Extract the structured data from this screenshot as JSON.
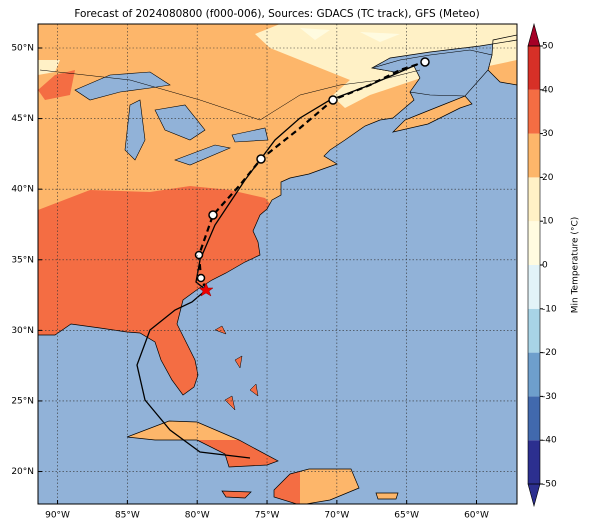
{
  "title": "Forecast of 2024080800 (f000-006), Sources: GDACS (TC track), GFS (Meteo)",
  "map": {
    "xlim": [
      -91.4,
      -57.1
    ],
    "ylim": [
      17.7,
      51.7
    ],
    "xticks": [
      {
        "value": -90,
        "label": "90°W"
      },
      {
        "value": -85,
        "label": "85°W"
      },
      {
        "value": -80,
        "label": "80°W"
      },
      {
        "value": -75,
        "label": "75°W"
      },
      {
        "value": -70,
        "label": "70°W"
      },
      {
        "value": -65,
        "label": "65°W"
      },
      {
        "value": -60,
        "label": "60°W"
      }
    ],
    "yticks": [
      {
        "value": 20,
        "label": "20°N"
      },
      {
        "value": 25,
        "label": "25°N"
      },
      {
        "value": 30,
        "label": "30°N"
      },
      {
        "value": 35,
        "label": "35°N"
      },
      {
        "value": 40,
        "label": "40°N"
      },
      {
        "value": 45,
        "label": "45°N"
      },
      {
        "value": 50,
        "label": "50°N"
      }
    ],
    "grid": true
  },
  "colorbar": {
    "label": "Min Temperature (°C)",
    "ylim": [
      -50,
      50
    ],
    "yticks": [
      -50,
      -40,
      -30,
      -20,
      -10,
      0,
      10,
      20,
      30,
      40,
      50
    ],
    "colors": [
      "#2c2f8f",
      "#4169ad",
      "#6e9fcc",
      "#a8d4e6",
      "#e2f3f8",
      "#fffbe0",
      "#fff1c6",
      "#fdb66a",
      "#f46d43",
      "#d73027",
      "#a50026"
    ]
  }
}
